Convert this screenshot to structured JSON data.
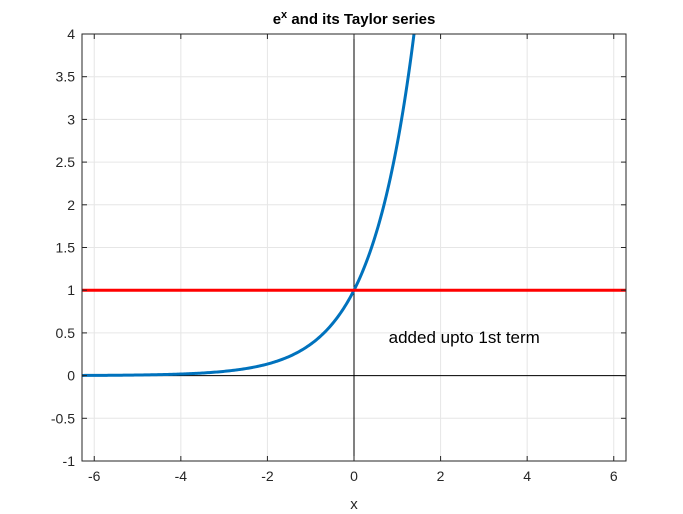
{
  "chart_data": {
    "type": "line",
    "title": {
      "base": "e",
      "superscript": "x",
      "rest": " and its Taylor series"
    },
    "xlabel": "x",
    "ylabel": "",
    "xlim": [
      -6.283,
      6.283
    ],
    "ylim": [
      -1,
      4
    ],
    "xticks": [
      -6,
      -4,
      -2,
      0,
      2,
      4,
      6
    ],
    "xtick_labels": [
      "-6",
      "-4",
      "-2",
      "0",
      "2",
      "4",
      "6"
    ],
    "yticks": [
      -1,
      -0.5,
      0,
      0.5,
      1,
      1.5,
      2,
      2.5,
      3,
      3.5,
      4
    ],
    "ytick_labels": [
      "-1",
      "-0.5",
      "0",
      "0.5",
      "1",
      "1.5",
      "2",
      "2.5",
      "3",
      "3.5",
      "4"
    ],
    "grid": true,
    "series": [
      {
        "function": "exp(x)",
        "color": "#0072BD",
        "x": [
          -6.283,
          -6,
          -5.5,
          -5,
          -4.5,
          -4,
          -3.5,
          -3,
          -2.5,
          -2,
          -1.75,
          -1.5,
          -1.25,
          -1,
          -0.75,
          -0.5,
          -0.25,
          0,
          0.25,
          0.5,
          0.75,
          1,
          1.1,
          1.2,
          1.3,
          1.386
        ],
        "y": [
          0.0019,
          0.0025,
          0.0041,
          0.0067,
          0.0111,
          0.0183,
          0.0302,
          0.0498,
          0.0821,
          0.1353,
          0.1738,
          0.2231,
          0.2865,
          0.3679,
          0.4724,
          0.6065,
          0.7788,
          1,
          1.284,
          1.6487,
          2.117,
          2.7183,
          3.0042,
          3.3201,
          3.6693,
          4.0
        ]
      },
      {
        "function": "1",
        "color": "#FF0000",
        "x": [
          -6.283,
          6.283
        ],
        "y": [
          1,
          1
        ]
      }
    ],
    "annotations": [
      {
        "text": "added upto 1st term",
        "x": 0.8,
        "y": 0.45
      }
    ]
  }
}
